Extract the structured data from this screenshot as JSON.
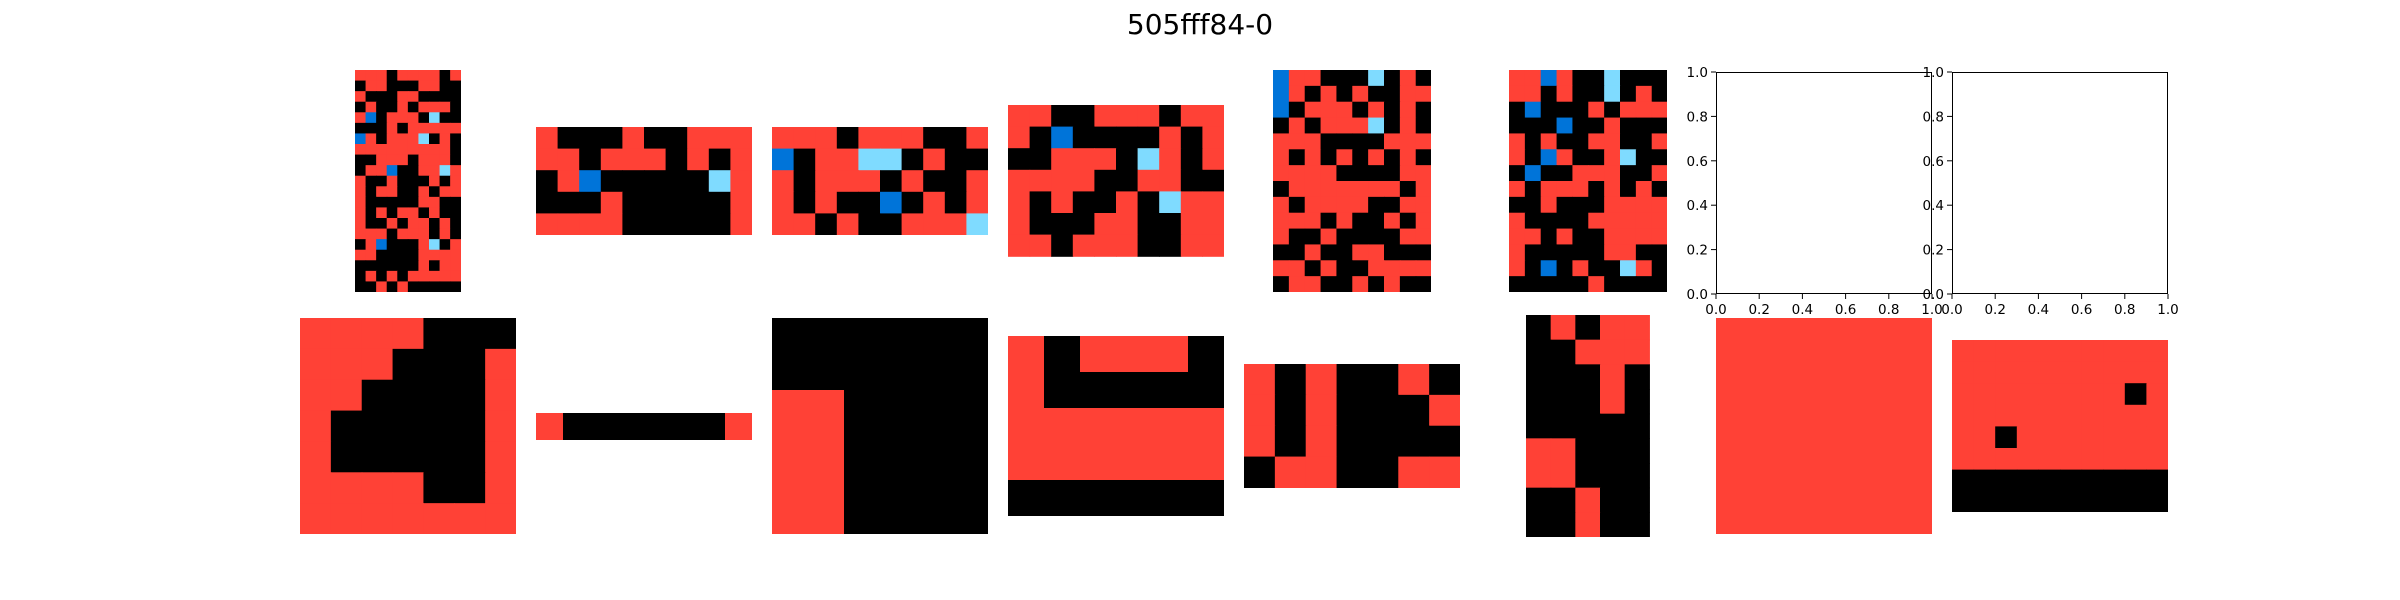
{
  "title": "505fff84-0",
  "palette": {
    "0": "#000000",
    "1": "#0074d9",
    "2": "#ff4136",
    "8": "#7fdbff"
  },
  "examples": [
    {
      "input": [
        "2220222202",
        "0220002200",
        "2000220000",
        "0200202220",
        "2102220800",
        "0002022222",
        "1202228020",
        "2222222220",
        "0022202220",
        "0221002282",
        "2002000202",
        "2022002022",
        "2000002200",
        "2020220200",
        "2002022020",
        "2220222020",
        "0210002802",
        "2200002222",
        "0000002022",
        "0202022222",
        "0020200000"
      ],
      "output": [
        "2222000",
        "2220002",
        "2200002",
        "2000002",
        "2000002",
        "2222002",
        "2222222"
      ]
    },
    {
      "input": [
        "2000200222",
        "2202220202",
        "0210000082",
        "0002000002",
        "2222000002"
      ],
      "output": [
        "20000002"
      ]
    },
    {
      "input": [
        "2220222002",
        "1022880200",
        "2022202002",
        "2020010202",
        "2202002228"
      ],
      "output": [
        "000",
        "200",
        "200"
      ]
    },
    {
      "input": [
        "2200222022",
        "2010000202",
        "0022208202",
        "2222002200",
        "2020020822",
        "2000220022",
        "2202220022"
      ],
      "output": [
        "202220",
        "200000",
        "222222",
        "222222",
        "000000"
      ]
    },
    {
      "input": [
        "1220008020",
        "1202020022",
        "1022202020",
        "0202228020",
        "2220000222",
        "2020202020",
        "2222000022",
        "0222222202",
        "2022220022",
        "2220200202",
        "2002000022",
        "0020022000",
        "2202002222",
        "0220020200"
      ],
      "output": [
        "2020020",
        "2020002",
        "2020000",
        "0220022"
      ]
    },
    {
      "input": [
        "2212008000",
        "2202008020",
        "0100020222",
        "0001002000",
        "2020022002",
        "2012002800",
        "0100222002",
        "2022202020",
        "0020002222",
        "2000022222",
        "2202002222",
        "2000002200",
        "2010200820",
        "0000020000"
      ],
      "output": [
        "02022",
        "00222",
        "00020",
        "00020",
        "00000",
        "22000",
        "22000",
        "00200",
        "00200"
      ]
    },
    {
      "output": [
        "22222222",
        "22222222",
        "22222222",
        "22222222",
        "22222222",
        "22222222",
        "22222222",
        "22222222"
      ]
    },
    {
      "output": [
        "2222222222",
        "2222222222",
        "2222222202",
        "2222222222",
        "2202222222",
        "2222222222",
        "0000000000",
        "0000000000"
      ]
    }
  ],
  "empty_axes": {
    "xticks": [
      "0.0",
      "0.2",
      "0.4",
      "0.6",
      "0.8",
      "1.0"
    ],
    "yticks": [
      "0.0",
      "0.2",
      "0.4",
      "0.6",
      "0.8",
      "1.0"
    ]
  }
}
